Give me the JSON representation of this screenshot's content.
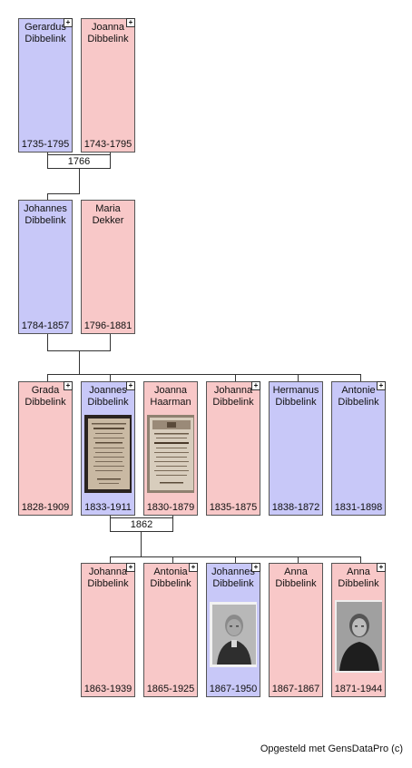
{
  "gen1": {
    "father": {
      "name": "Gerardus\nDibbelink",
      "dates": "1735-1795"
    },
    "mother": {
      "name": "Joanna\nDibbelink",
      "dates": "1743-1795"
    },
    "marriage": "1766"
  },
  "gen2": {
    "father": {
      "name": "Johannes\nDibbelink",
      "dates": "1784-1857"
    },
    "mother": {
      "name": "Maria\nDekker",
      "dates": "1796-1881"
    }
  },
  "gen3": [
    {
      "name": "Grada\nDibbelink",
      "dates": "1828-1909"
    },
    {
      "name": "Joannes\nDibbelink",
      "dates": "1833-1911"
    },
    {
      "name": "Joanna\nHaarman",
      "dates": "1830-1879"
    },
    {
      "name": "Johanna\nDibbelink",
      "dates": "1835-1875"
    },
    {
      "name": "Hermanus\nDibbelink",
      "dates": "1838-1872"
    },
    {
      "name": "Antonie\nDibbelink",
      "dates": "1831-1898"
    }
  ],
  "gen3_marriage": "1862",
  "gen4": [
    {
      "name": "Johanna\nDibbelink",
      "dates": "1863-1939"
    },
    {
      "name": "Antonia\nDibbelink",
      "dates": "1865-1925"
    },
    {
      "name": "Johannes\nDibbelink",
      "dates": "1867-1950"
    },
    {
      "name": "Anna\nDibbelink",
      "dates": "1867-1867"
    },
    {
      "name": "Anna\nDibbelink",
      "dates": "1871-1944"
    }
  ],
  "expand_symbol": "+",
  "footer": "Opgesteld met GensDataPro (c)",
  "colors": {
    "male": "#c8c8f8",
    "female": "#f8c8c8"
  }
}
